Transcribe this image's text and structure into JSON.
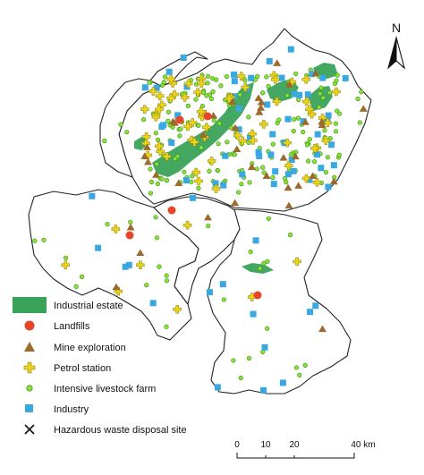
{
  "north_arrow": {
    "label": "N"
  },
  "legend": {
    "items": [
      {
        "key": "industrial_estate",
        "label": "Industrial estate",
        "symbol": "patch",
        "color": "#3aa35a"
      },
      {
        "key": "landfills",
        "label": "Landfills",
        "symbol": "circle",
        "color": "#e4472a"
      },
      {
        "key": "mine_exploration",
        "label": "Mine exploration",
        "symbol": "triangle",
        "color": "#9b6a2c"
      },
      {
        "key": "petrol_station",
        "label": "Petrol station",
        "symbol": "cross",
        "color": "#e8d51a"
      },
      {
        "key": "livestock_farm",
        "label": "Intensive livestock farm",
        "symbol": "star",
        "color": "#86e33a"
      },
      {
        "key": "industry",
        "label": "Industry",
        "symbol": "square",
        "color": "#3aa8e0"
      },
      {
        "key": "hazardous_waste",
        "label": "Hazardous waste disposal site",
        "symbol": "x",
        "color": "#111111"
      }
    ]
  },
  "scale_bar": {
    "ticks": [
      0,
      10,
      20,
      40
    ],
    "labels": [
      "0",
      "10",
      "20",
      "40 km"
    ]
  }
}
